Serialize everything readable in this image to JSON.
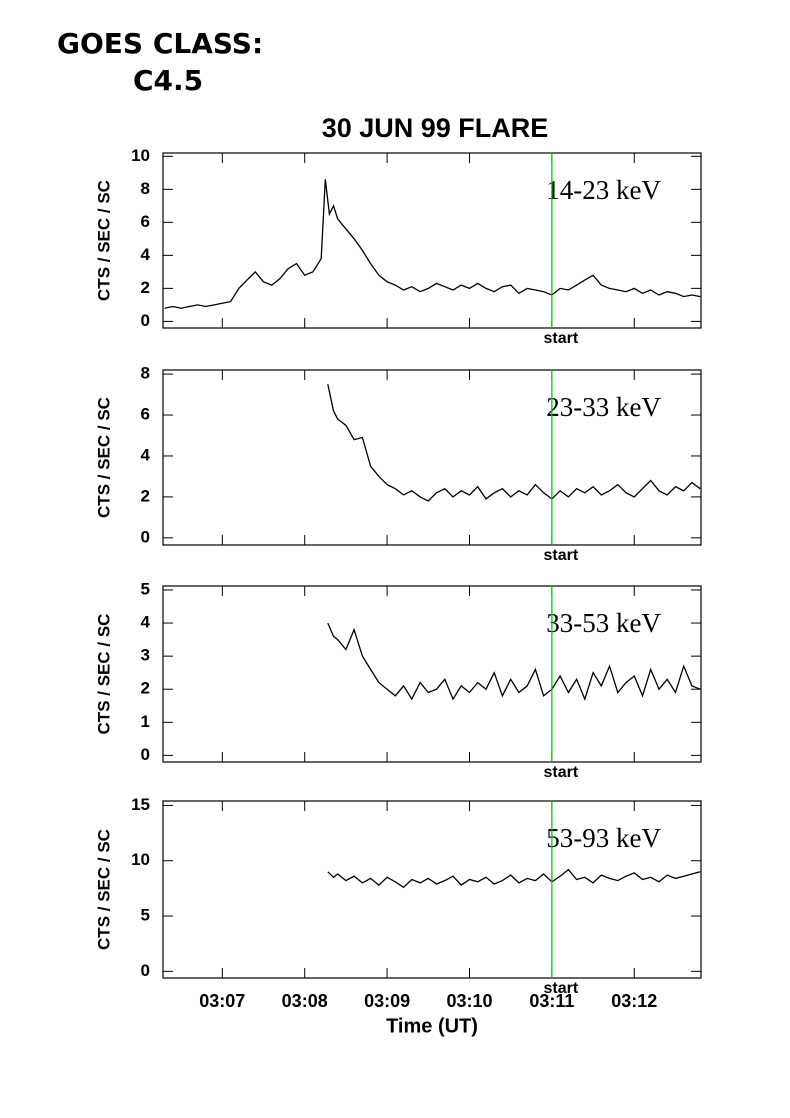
{
  "header": {
    "line1": "GOES CLASS:",
    "line2": "C4.5"
  },
  "chart_data": [
    {
      "type": "line",
      "title": "30 JUN 99 FLARE",
      "y_label": "CTS / SEC / SC",
      "band_label": "14-23 keV",
      "xlim": [
        6.28,
        12.81
      ],
      "ylim": [
        -0.4,
        10.2
      ],
      "yticks": [
        0,
        2,
        4,
        6,
        8,
        10
      ],
      "color": "#000000",
      "annotations": [
        {
          "x": 11.0,
          "label": "start",
          "color": "#00cc00"
        }
      ],
      "x": [
        6.3,
        6.4,
        6.5,
        6.6,
        6.7,
        6.8,
        6.9,
        7.0,
        7.1,
        7.2,
        7.3,
        7.4,
        7.5,
        7.6,
        7.7,
        7.8,
        7.9,
        8.0,
        8.1,
        8.2,
        8.25,
        8.3,
        8.35,
        8.4,
        8.5,
        8.6,
        8.7,
        8.8,
        8.9,
        9.0,
        9.1,
        9.2,
        9.3,
        9.4,
        9.5,
        9.6,
        9.7,
        9.8,
        9.9,
        10.0,
        10.1,
        10.2,
        10.3,
        10.4,
        10.5,
        10.6,
        10.7,
        10.8,
        10.9,
        11.0,
        11.1,
        11.2,
        11.3,
        11.4,
        11.5,
        11.6,
        11.7,
        11.8,
        11.9,
        12.0,
        12.1,
        12.2,
        12.3,
        12.4,
        12.5,
        12.6,
        12.7,
        12.8
      ],
      "values": [
        0.8,
        0.9,
        0.8,
        0.9,
        1.0,
        0.9,
        1.0,
        1.1,
        1.2,
        2.0,
        2.5,
        3.0,
        2.4,
        2.2,
        2.6,
        3.2,
        3.5,
        2.8,
        3.0,
        3.8,
        8.6,
        6.5,
        7.0,
        6.2,
        5.6,
        5.0,
        4.3,
        3.5,
        2.8,
        2.4,
        2.2,
        1.9,
        2.1,
        1.8,
        2.0,
        2.3,
        2.1,
        1.9,
        2.2,
        2.0,
        2.3,
        2.0,
        1.8,
        2.1,
        2.2,
        1.7,
        2.0,
        1.9,
        1.8,
        1.6,
        2.0,
        1.9,
        2.2,
        2.5,
        2.8,
        2.2,
        2.0,
        1.9,
        1.8,
        2.0,
        1.7,
        1.9,
        1.6,
        1.8,
        1.7,
        1.5,
        1.6,
        1.5
      ]
    },
    {
      "type": "line",
      "y_label": "CTS / SEC / SC",
      "band_label": "23-33 keV",
      "xlim": [
        6.28,
        12.81
      ],
      "ylim": [
        -0.35,
        8.2
      ],
      "yticks": [
        0,
        2,
        4,
        6,
        8
      ],
      "color": "#000000",
      "annotations": [
        {
          "x": 11.0,
          "label": "start",
          "color": "#00cc00"
        }
      ],
      "x": [
        8.28,
        8.35,
        8.4,
        8.5,
        8.6,
        8.7,
        8.8,
        8.9,
        9.0,
        9.1,
        9.2,
        9.3,
        9.4,
        9.5,
        9.6,
        9.7,
        9.8,
        9.9,
        10.0,
        10.1,
        10.2,
        10.3,
        10.4,
        10.5,
        10.6,
        10.7,
        10.8,
        10.9,
        11.0,
        11.1,
        11.2,
        11.3,
        11.4,
        11.5,
        11.6,
        11.7,
        11.8,
        11.9,
        12.0,
        12.1,
        12.2,
        12.3,
        12.4,
        12.5,
        12.6,
        12.7,
        12.8
      ],
      "values": [
        7.5,
        6.2,
        5.8,
        5.5,
        4.8,
        4.9,
        3.5,
        3.0,
        2.6,
        2.4,
        2.1,
        2.3,
        2.0,
        1.8,
        2.2,
        2.4,
        2.0,
        2.3,
        2.1,
        2.5,
        1.9,
        2.2,
        2.4,
        2.0,
        2.3,
        2.1,
        2.6,
        2.2,
        1.9,
        2.3,
        2.0,
        2.4,
        2.2,
        2.5,
        2.1,
        2.3,
        2.6,
        2.2,
        2.0,
        2.4,
        2.8,
        2.3,
        2.1,
        2.5,
        2.3,
        2.7,
        2.4
      ]
    },
    {
      "type": "line",
      "y_label": "CTS / SEC / SC",
      "band_label": "33-53 keV",
      "xlim": [
        6.28,
        12.81
      ],
      "ylim": [
        -0.2,
        5.12
      ],
      "yticks": [
        0,
        1,
        2,
        3,
        4,
        5
      ],
      "color": "#000000",
      "annotations": [
        {
          "x": 11.0,
          "label": "start",
          "color": "#00cc00"
        }
      ],
      "x": [
        8.28,
        8.35,
        8.4,
        8.5,
        8.6,
        8.7,
        8.8,
        8.9,
        9.0,
        9.1,
        9.2,
        9.3,
        9.4,
        9.5,
        9.6,
        9.7,
        9.8,
        9.9,
        10.0,
        10.1,
        10.2,
        10.3,
        10.4,
        10.5,
        10.6,
        10.7,
        10.8,
        10.9,
        11.0,
        11.1,
        11.2,
        11.3,
        11.4,
        11.5,
        11.6,
        11.7,
        11.8,
        11.9,
        12.0,
        12.1,
        12.2,
        12.3,
        12.4,
        12.5,
        12.6,
        12.7,
        12.8
      ],
      "values": [
        4.0,
        3.6,
        3.5,
        3.2,
        3.8,
        3.0,
        2.6,
        2.2,
        2.0,
        1.8,
        2.1,
        1.7,
        2.2,
        1.9,
        2.0,
        2.3,
        1.7,
        2.1,
        1.9,
        2.2,
        2.0,
        2.5,
        1.8,
        2.3,
        1.9,
        2.1,
        2.6,
        1.8,
        2.0,
        2.4,
        1.9,
        2.3,
        1.7,
        2.5,
        2.1,
        2.7,
        1.9,
        2.2,
        2.4,
        1.8,
        2.6,
        2.0,
        2.3,
        1.9,
        2.7,
        2.1,
        2.0
      ]
    },
    {
      "type": "line",
      "y_label": "CTS / SEC / SC",
      "band_label": "53-93 keV",
      "x_label": "Time (UT)",
      "xlim": [
        6.28,
        12.81
      ],
      "ylim": [
        -0.6,
        15.4
      ],
      "yticks": [
        0,
        5,
        10,
        15
      ],
      "color": "#000000",
      "xticks": [
        {
          "value": 7,
          "label": "03:07"
        },
        {
          "value": 8,
          "label": "03:08"
        },
        {
          "value": 9,
          "label": "03:09"
        },
        {
          "value": 10,
          "label": "03:10"
        },
        {
          "value": 11,
          "label": "03:11"
        },
        {
          "value": 12,
          "label": "03:12"
        }
      ],
      "annotations": [
        {
          "x": 11.0,
          "label": "start",
          "color": "#00cc00"
        }
      ],
      "x": [
        8.28,
        8.35,
        8.4,
        8.5,
        8.6,
        8.7,
        8.8,
        8.9,
        9.0,
        9.1,
        9.2,
        9.3,
        9.4,
        9.5,
        9.6,
        9.7,
        9.8,
        9.9,
        10.0,
        10.1,
        10.2,
        10.3,
        10.4,
        10.5,
        10.6,
        10.7,
        10.8,
        10.9,
        11.0,
        11.1,
        11.2,
        11.3,
        11.4,
        11.5,
        11.6,
        11.7,
        11.8,
        11.9,
        12.0,
        12.1,
        12.2,
        12.3,
        12.4,
        12.5,
        12.6,
        12.7,
        12.8
      ],
      "values": [
        9.0,
        8.5,
        8.8,
        8.2,
        8.6,
        8.0,
        8.4,
        7.8,
        8.5,
        8.1,
        7.6,
        8.3,
        8.0,
        8.4,
        7.9,
        8.2,
        8.6,
        7.8,
        8.3,
        8.1,
        8.5,
        7.9,
        8.2,
        8.7,
        8.0,
        8.4,
        8.2,
        8.8,
        8.1,
        8.6,
        9.2,
        8.3,
        8.5,
        8.0,
        8.7,
        8.4,
        8.2,
        8.6,
        8.9,
        8.3,
        8.5,
        8.1,
        8.7,
        8.4,
        8.6,
        8.8,
        9.0
      ]
    }
  ]
}
